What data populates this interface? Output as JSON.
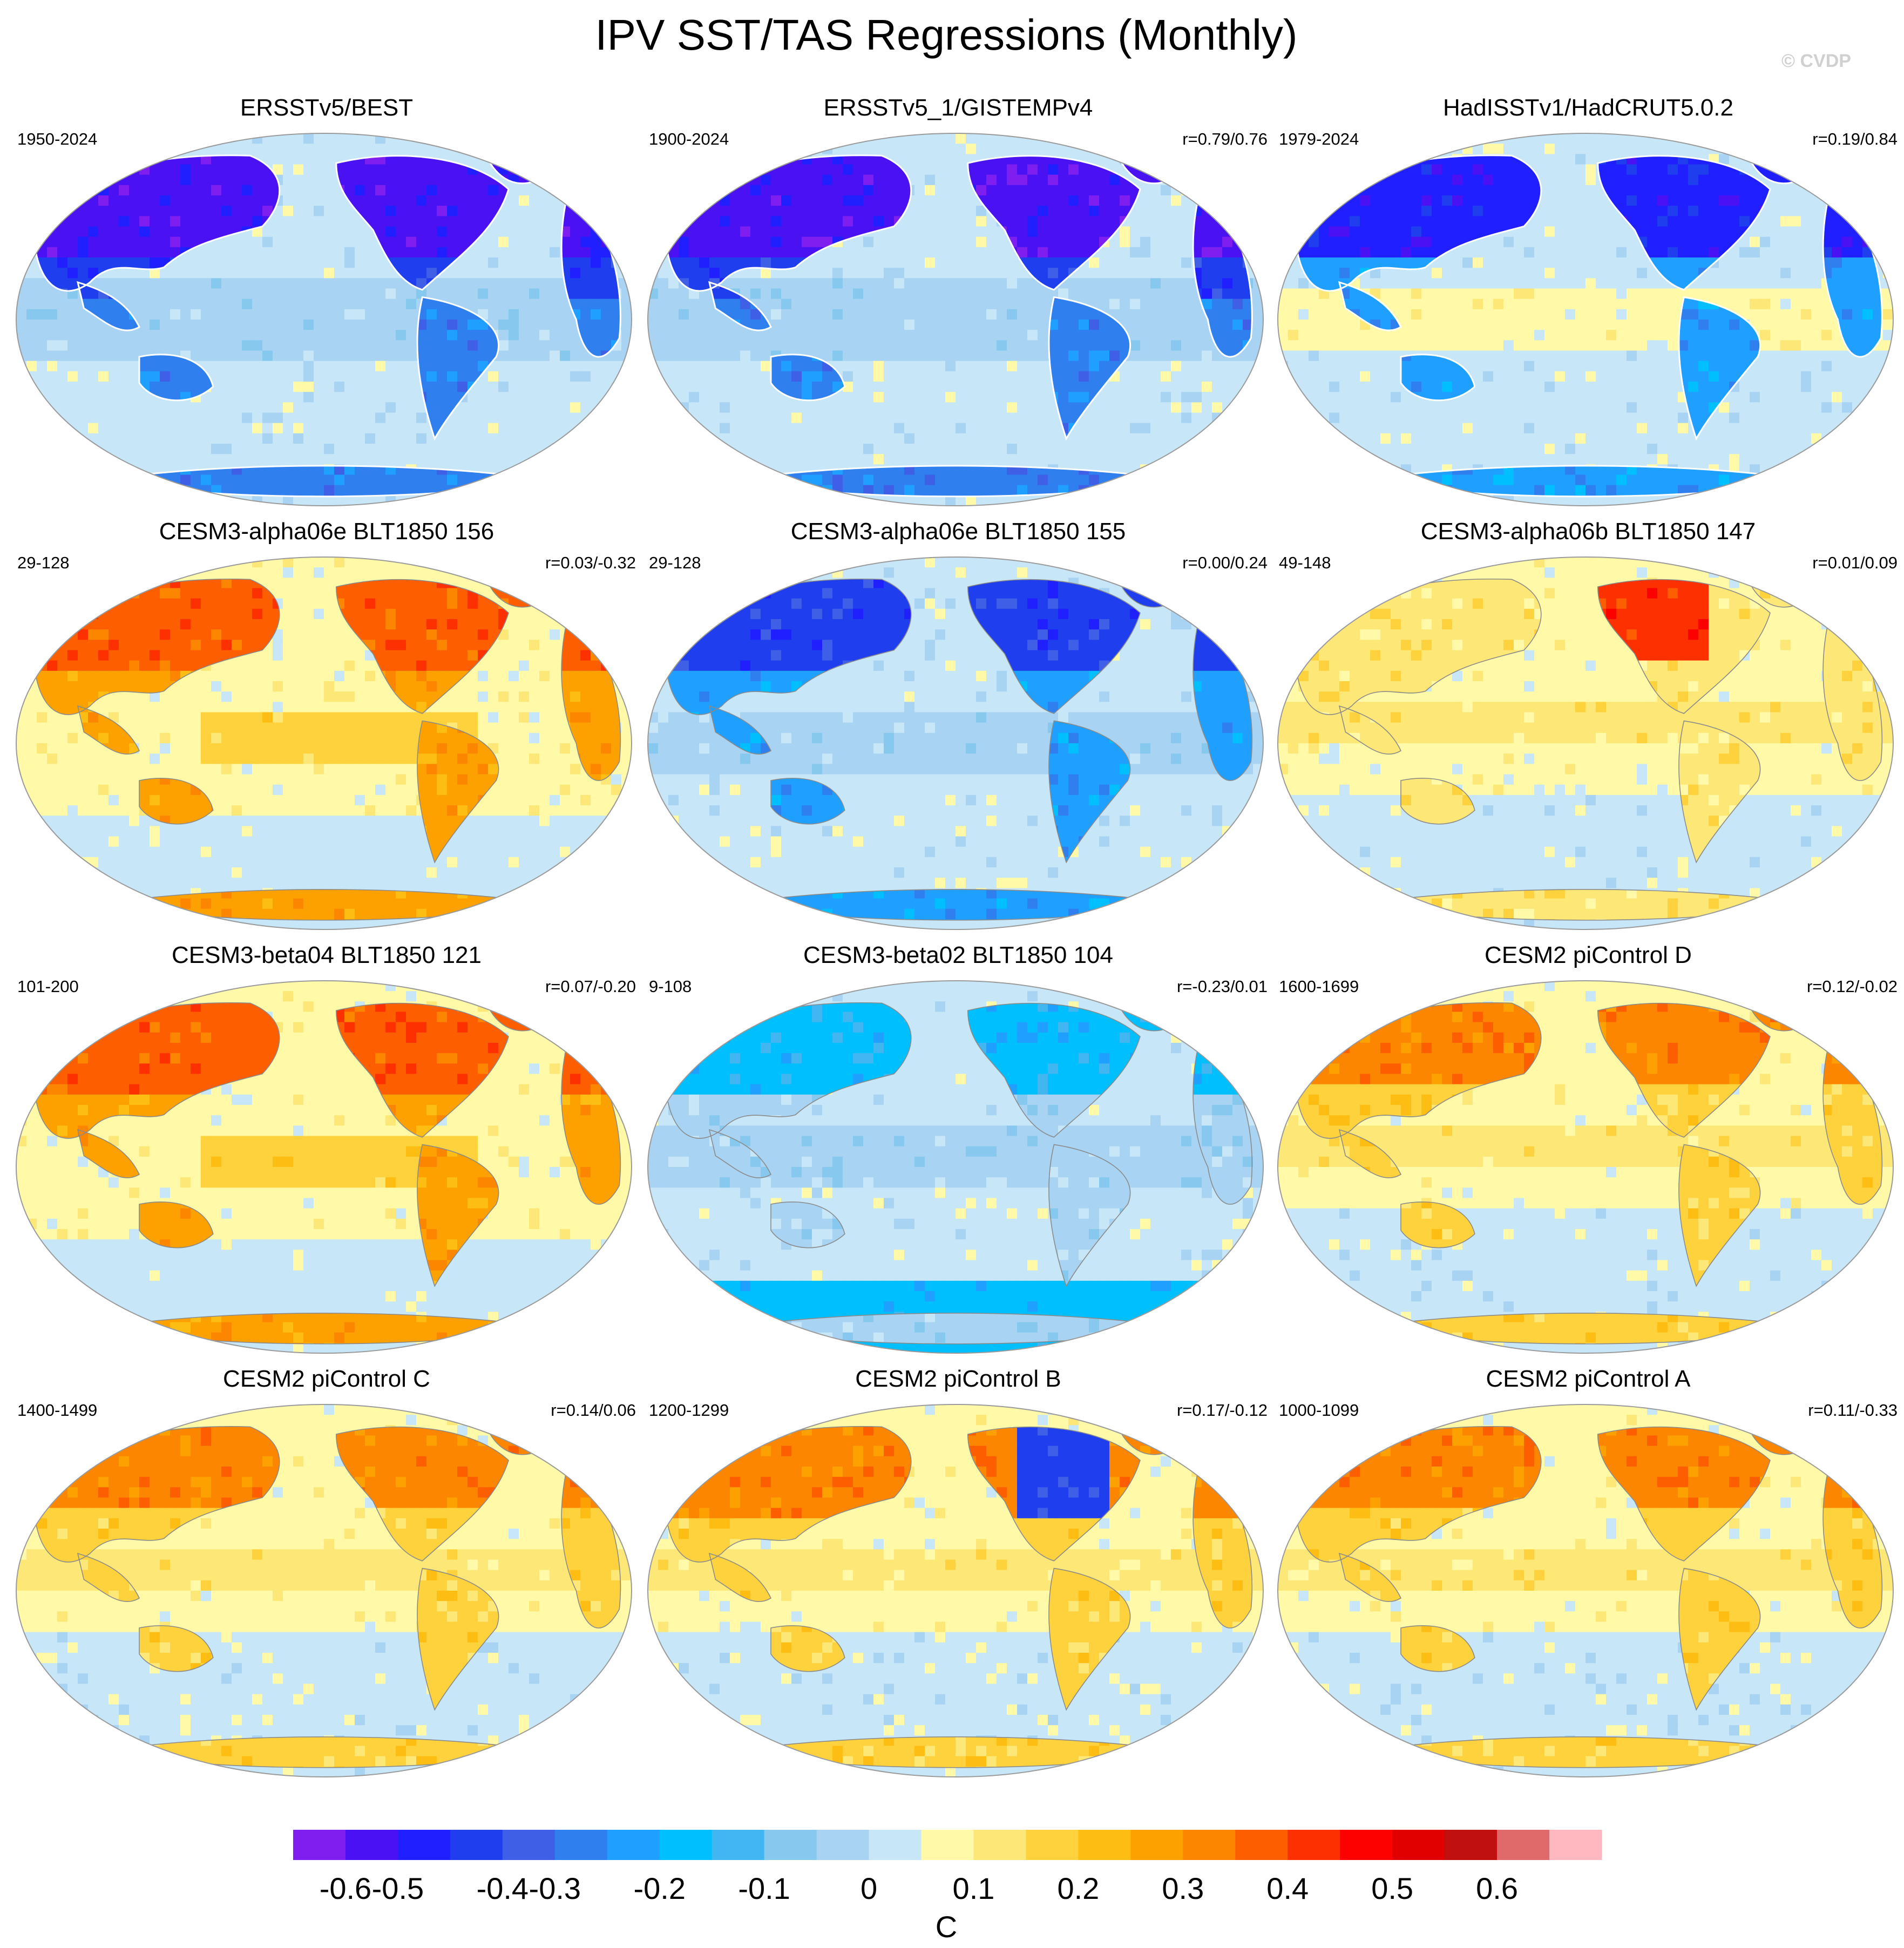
{
  "title": "IPV SST/TAS Regressions (Monthly)",
  "watermark": "© CVDP",
  "colors": {
    "scale": [
      "#7f1fef",
      "#4a12f2",
      "#1f1fff",
      "#1f3fee",
      "#3f5fe6",
      "#2f7fef",
      "#1f9fff",
      "#00bfff",
      "#41b6f0",
      "#87c8ee",
      "#a8d3f2",
      "#c7e6f7",
      "#fff9a8",
      "#fde777",
      "#fdd23d",
      "#fdbd12",
      "#fda100",
      "#fd8600",
      "#fd5e00",
      "#fd3000",
      "#fd0000",
      "#e10000",
      "#c01010",
      "#e06a6a",
      "#ffb8c0"
    ],
    "coast": "#8a8a8a",
    "land_mask": "#ffffff"
  },
  "chart_data": [
    {
      "type": "heatmap",
      "id": "p1",
      "title": "ERSSTv5/BEST",
      "period": "1950-2024",
      "r": "",
      "pattern": "obs-cold",
      "scale_index_range": [
        0,
        13
      ]
    },
    {
      "type": "heatmap",
      "id": "p2",
      "title": "ERSSTv5_1/GISTEMPv4",
      "period": "1900-2024",
      "r": "r=0.79/0.76",
      "pattern": "obs-cold",
      "scale_index_range": [
        0,
        13
      ]
    },
    {
      "type": "heatmap",
      "id": "p3",
      "title": "HadISSTv1/HadCRUT5.0.2",
      "period": "1979-2024",
      "r": "r=0.19/0.84",
      "pattern": "obs-cold-masked",
      "scale_index_range": [
        0,
        13
      ]
    },
    {
      "type": "heatmap",
      "id": "p4",
      "title": "CESM3-alpha06e BLT1850 156",
      "period": "29-128",
      "r": "r=0.03/-0.32",
      "pattern": "warm-strong",
      "scale_index_range": [
        11,
        24
      ]
    },
    {
      "type": "heatmap",
      "id": "p5",
      "title": "CESM3-alpha06e BLT1850 155",
      "period": "29-128",
      "r": "r=0.00/0.24",
      "pattern": "cold-model",
      "scale_index_range": [
        0,
        13
      ]
    },
    {
      "type": "heatmap",
      "id": "p6",
      "title": "CESM3-alpha06b BLT1850 147",
      "period": "49-148",
      "r": "r=0.01/0.09",
      "pattern": "warm-weak",
      "scale_index_range": [
        9,
        24
      ]
    },
    {
      "type": "heatmap",
      "id": "p7",
      "title": "CESM3-beta04 BLT1850 121",
      "period": "101-200",
      "r": "r=0.07/-0.20",
      "pattern": "warm-strong",
      "scale_index_range": [
        11,
        22
      ]
    },
    {
      "type": "heatmap",
      "id": "p8",
      "title": "CESM3-beta02 BLT1850 104",
      "period": "9-108",
      "r": "r=-0.23/0.01",
      "pattern": "mixed-cold",
      "scale_index_range": [
        2,
        17
      ]
    },
    {
      "type": "heatmap",
      "id": "p9",
      "title": "CESM2 piControl D",
      "period": "1600-1699",
      "r": "r=0.12/-0.02",
      "pattern": "warm-medium",
      "scale_index_range": [
        9,
        22
      ]
    },
    {
      "type": "heatmap",
      "id": "p10",
      "title": "CESM2 piControl C",
      "period": "1400-1499",
      "r": "r=0.14/0.06",
      "pattern": "warm-medium",
      "scale_index_range": [
        9,
        22
      ]
    },
    {
      "type": "heatmap",
      "id": "p11",
      "title": "CESM2 piControl B",
      "period": "1200-1299",
      "r": "r=0.17/-0.12",
      "pattern": "warm-mixed",
      "scale_index_range": [
        3,
        22
      ]
    },
    {
      "type": "heatmap",
      "id": "p12",
      "title": "CESM2 piControl A",
      "period": "1000-1099",
      "r": "r=0.11/-0.33",
      "pattern": "warm-medium",
      "scale_index_range": [
        9,
        20
      ]
    }
  ],
  "colorbar": {
    "ticks": [
      {
        "label": "-0.6",
        "boundary": 1
      },
      {
        "label": "-0.5",
        "boundary": 2
      },
      {
        "label": "-0.4",
        "boundary": 4
      },
      {
        "label": "-0.3",
        "boundary": 5
      },
      {
        "label": "-0.2",
        "boundary": 7
      },
      {
        "label": "-0.1",
        "boundary": 9
      },
      {
        "label": "0",
        "boundary": 11
      },
      {
        "label": "0.1",
        "boundary": 13
      },
      {
        "label": "0.2",
        "boundary": 15
      },
      {
        "label": "0.3",
        "boundary": 17
      },
      {
        "label": "0.4",
        "boundary": 19
      },
      {
        "label": "0.5",
        "boundary": 21
      },
      {
        "label": "0.6",
        "boundary": 23
      }
    ],
    "units": "C"
  }
}
